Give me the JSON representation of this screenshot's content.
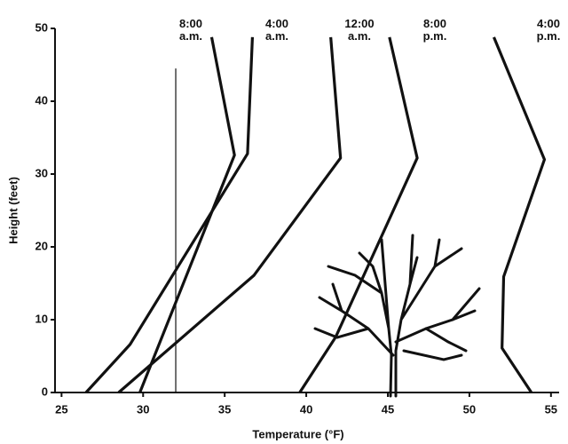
{
  "chart_data": {
    "type": "line",
    "x_label": "Temperature (°F)",
    "y_label": "Height (feet)",
    "xlim": [
      24.6,
      55.5
    ],
    "ylim": [
      0,
      50
    ],
    "xticks": [
      25,
      30,
      35,
      40,
      45,
      50,
      55
    ],
    "yticks": [
      0,
      10,
      20,
      30,
      40,
      50
    ],
    "vline": 32,
    "series": [
      {
        "name": "8:00 a.m.",
        "color": "#111111",
        "x": [
          29.8,
          35.6,
          34.2
        ],
        "values": [
          0,
          32.6,
          48.8
        ]
      },
      {
        "name": "4:00 a.m.",
        "color": "#111111",
        "x": [
          26.5,
          29.2,
          36.4,
          36.7
        ],
        "values": [
          0,
          6.6,
          32.8,
          48.8
        ]
      },
      {
        "name": "12:00 a.m.",
        "color": "#111111",
        "x": [
          28.5,
          36.8,
          42.1,
          41.5
        ],
        "values": [
          0,
          16.1,
          32.2,
          48.8
        ]
      },
      {
        "name": "8:00 p.m.",
        "color": "#111111",
        "x": [
          39.6,
          41.8,
          46.8,
          45.1
        ],
        "values": [
          0,
          7.6,
          32.2,
          48.8
        ]
      },
      {
        "name": "4:00 p.m.",
        "color": "#111111",
        "x": [
          53.8,
          52.0,
          52.1,
          54.6,
          51.5
        ],
        "values": [
          0,
          6.1,
          15.9,
          32.0,
          48.8
        ]
      }
    ]
  }
}
